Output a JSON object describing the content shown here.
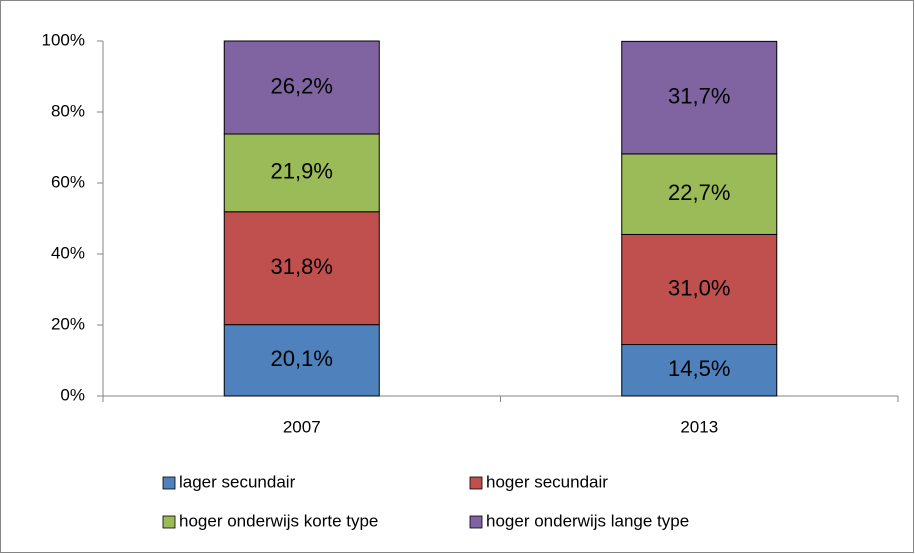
{
  "chart_data": {
    "type": "stacked_bar",
    "categories": [
      "2007",
      "2013"
    ],
    "series": [
      {
        "name": "lager secundair",
        "color": "#4f81bd",
        "values": [
          20.1,
          14.5
        ],
        "value_labels": [
          "20,1%",
          "14,5%"
        ]
      },
      {
        "name": "hoger secundair",
        "color": "#c0504d",
        "values": [
          31.8,
          31.0
        ],
        "value_labels": [
          "31,8%",
          "31,0%"
        ]
      },
      {
        "name": "hoger onderwijs korte type",
        "color": "#9bbb59",
        "values": [
          21.9,
          22.7
        ],
        "value_labels": [
          "21,9%",
          "22,7%"
        ]
      },
      {
        "name": "hoger onderwijs lange type",
        "color": "#8064a2",
        "values": [
          26.2,
          31.7
        ],
        "value_labels": [
          "26,2%",
          "31,7%"
        ]
      }
    ],
    "ylim": [
      0,
      100
    ],
    "yticks": [
      {
        "value": 0,
        "label": "0%"
      },
      {
        "value": 20,
        "label": "20%"
      },
      {
        "value": 40,
        "label": "40%"
      },
      {
        "value": 60,
        "label": "60%"
      },
      {
        "value": 80,
        "label": "80%"
      },
      {
        "value": 100,
        "label": "100%"
      }
    ],
    "legend": "bottom"
  }
}
